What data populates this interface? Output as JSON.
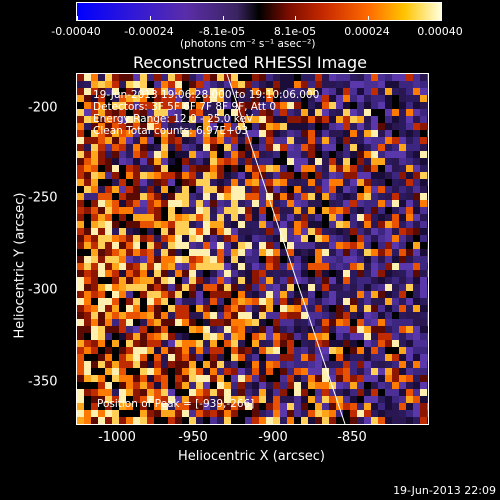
{
  "colorbar": {
    "tick_labels": [
      "-0.00040",
      "-0.00024",
      "-8.1e-05",
      "8.1e-05",
      "0.00024",
      "0.00040"
    ],
    "units": "(photons cm⁻² s⁻¹ asec⁻²)"
  },
  "plot": {
    "title": "Reconstructed RHESSI Image",
    "xlabel": "Heliocentric X (arcsec)",
    "ylabel": "Heliocentric Y (arcsec)",
    "xticks": [
      "-1000",
      "-950",
      "-900",
      "-850"
    ],
    "yticks": [
      "-200",
      "-250",
      "-300",
      "-350"
    ],
    "annotations": {
      "time": "19-Jun-2013 19:06:28.000 to 19:10:06.000",
      "detectors": "Detectors: 3F 5F 6F 7F 8F 9F, Att 0",
      "energy": "Energy Range: 12.0 - 25.0 keV",
      "clean": "Clean    Total counts: 6.97E+03",
      "peak": "Position of Peak = [-939,-266]"
    }
  },
  "footer": {
    "timestamp": "19-Jun-2013 22:09"
  },
  "colors": {
    "background": "#000000",
    "limb_line": "#ffffff"
  }
}
